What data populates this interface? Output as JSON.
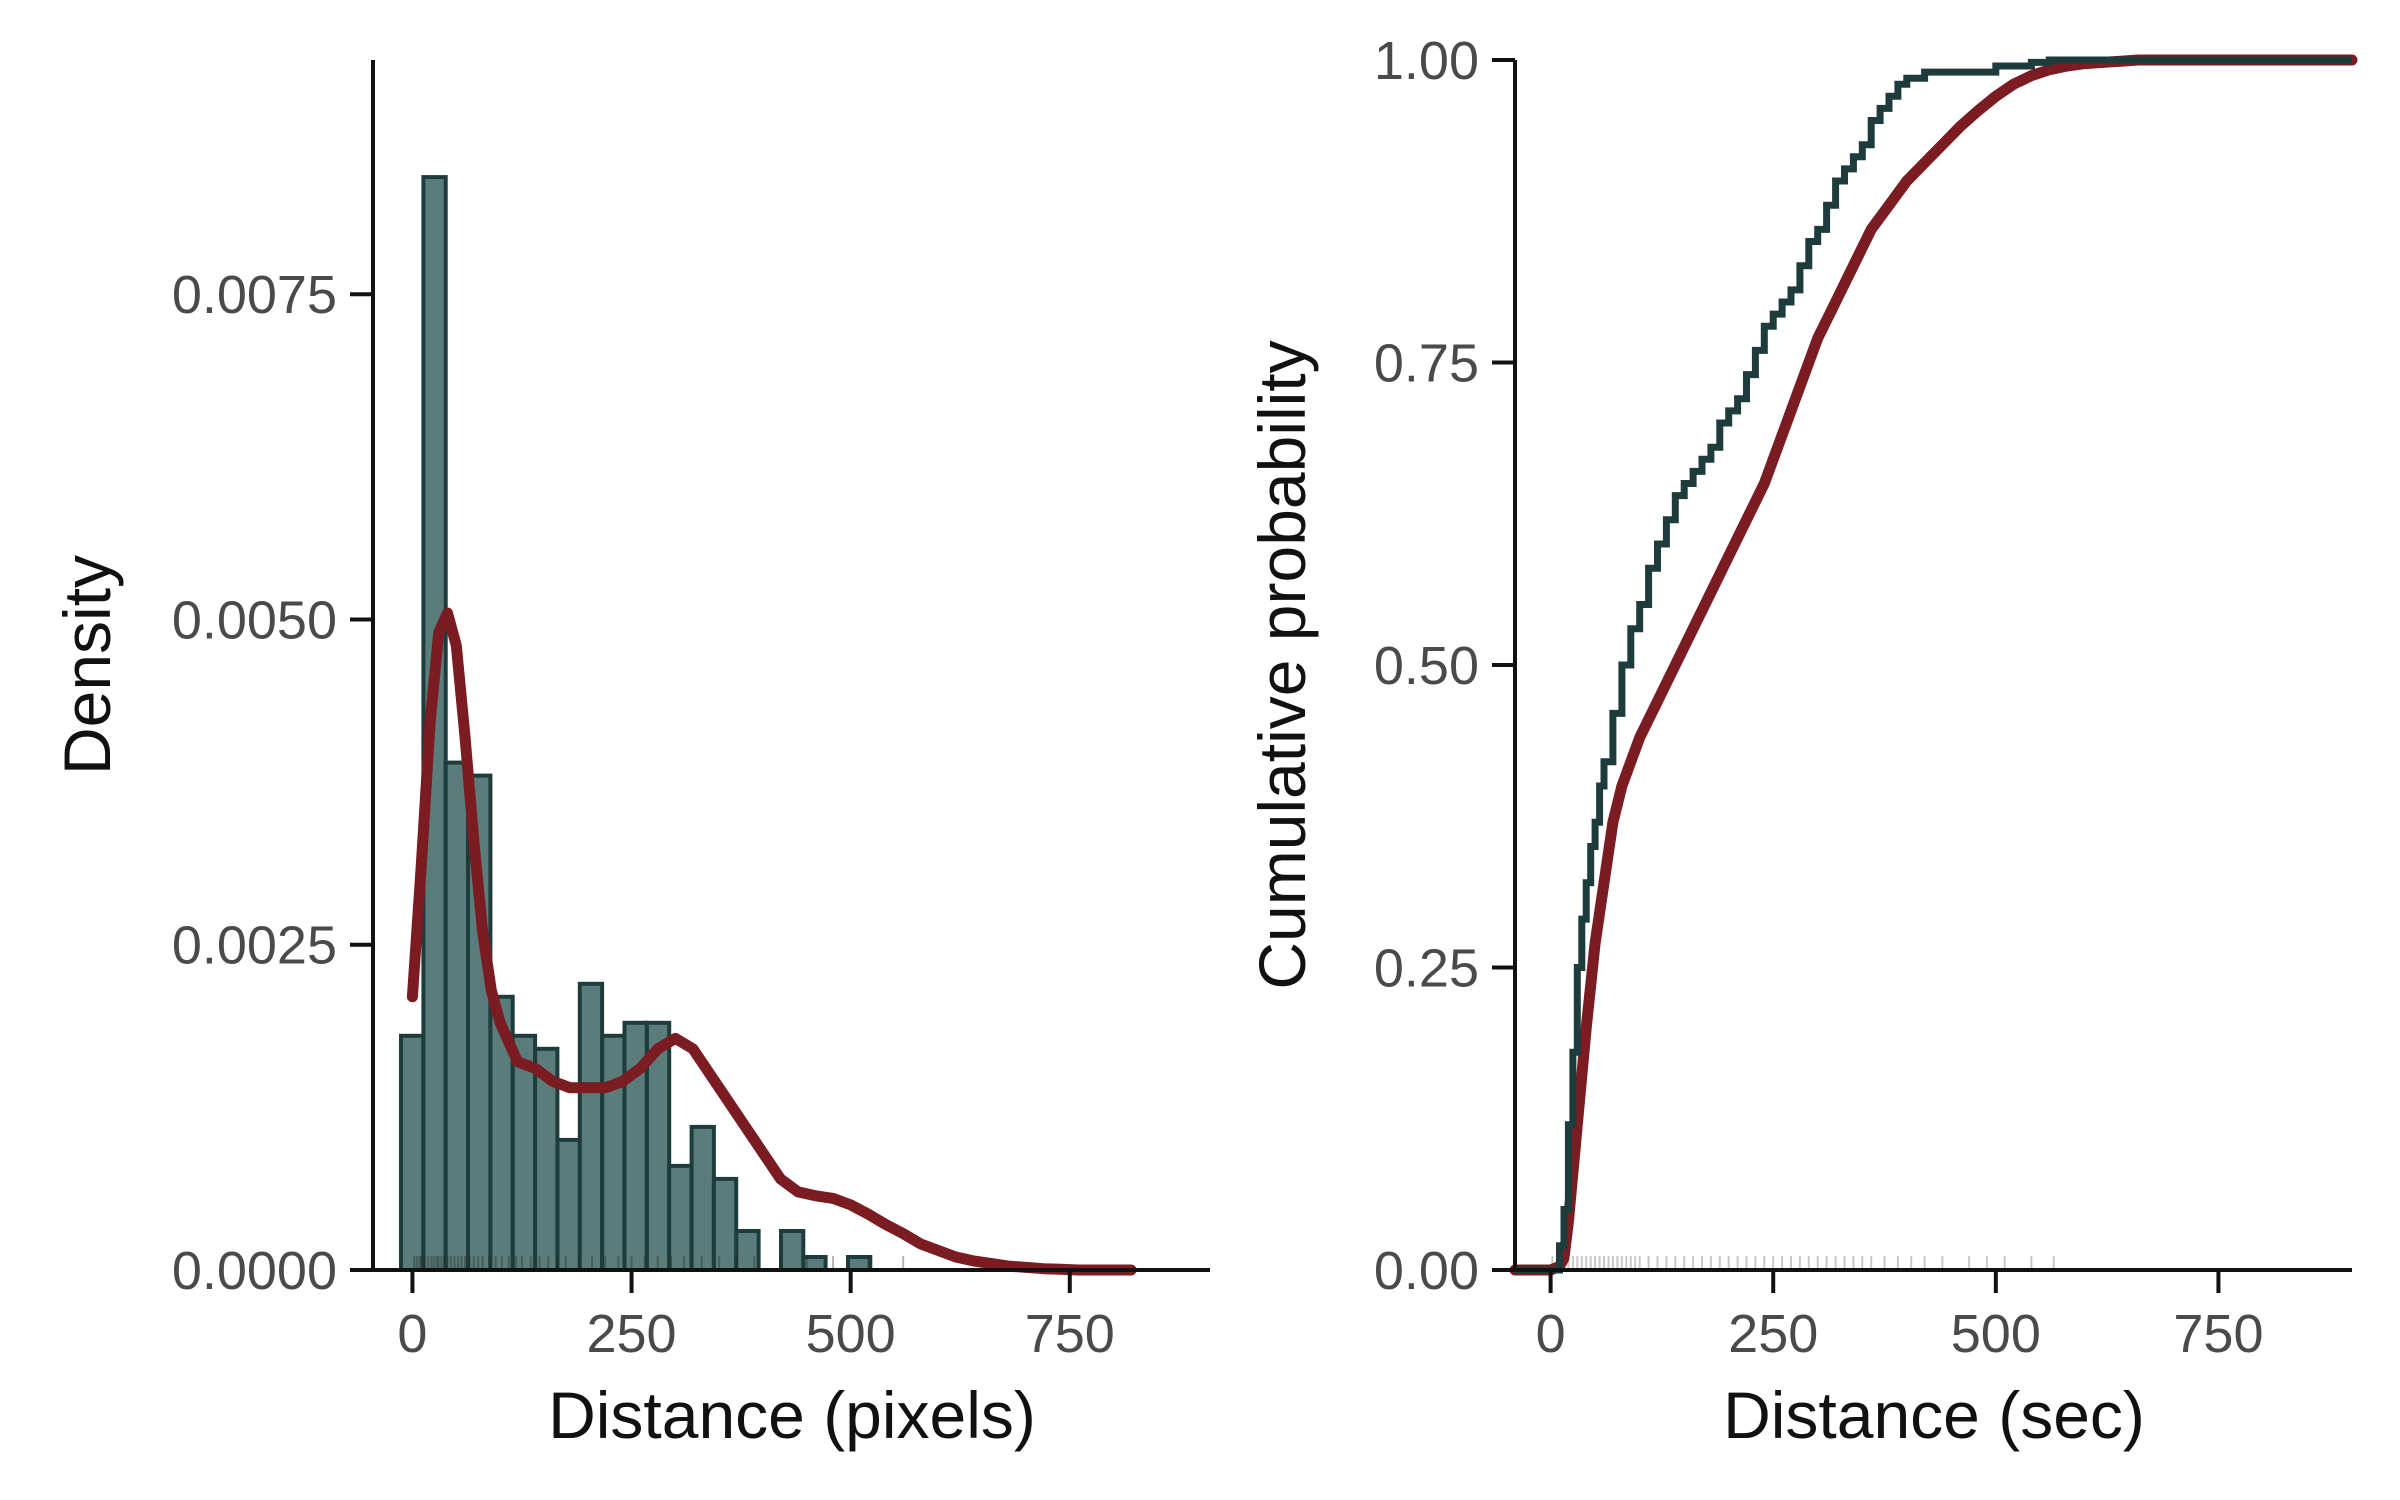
{
  "chart_data": [
    {
      "type": "bar",
      "subtype": "histogram-with-kde-and-rug",
      "xlabel": "Distance (pixels)",
      "ylabel": "Density",
      "xlim": [
        -45,
        910
      ],
      "ylim": [
        0,
        0.0093
      ],
      "xticks": [
        0,
        250,
        500,
        750
      ],
      "xtick_labels": [
        "0",
        "250",
        "500",
        "750"
      ],
      "yticks": [
        0,
        0.0025,
        0.005,
        0.0075
      ],
      "ytick_labels": [
        "0.0000",
        "0.0025",
        "0.0050",
        "0.0075"
      ],
      "grid": false,
      "colors": {
        "bars": "#5a7d7b",
        "bar_edge": "#1e3c3c",
        "kde": "#7b1b22",
        "axis": "#111111",
        "rug": "#222222"
      },
      "bin_width": 25.5,
      "bin_starts": [
        -13,
        12.5,
        38,
        63.5,
        89,
        114.5,
        140,
        165.5,
        191,
        216.5,
        242,
        267.5,
        293,
        318.5,
        344,
        369.5,
        395,
        420.5,
        446,
        471.5,
        497,
        522.5,
        548
      ],
      "values": [
        0.0018,
        0.0084,
        0.0039,
        0.0038,
        0.0021,
        0.0018,
        0.0017,
        0.001,
        0.0022,
        0.0018,
        0.0019,
        0.0019,
        0.0008,
        0.0011,
        0.0007,
        0.0003,
        0.0,
        0.0003,
        0.0001,
        0.0,
        0.0001,
        0.0,
        0.0
      ],
      "kde": {
        "x": [
          0,
          10,
          20,
          30,
          40,
          50,
          60,
          70,
          80,
          90,
          100,
          120,
          140,
          160,
          180,
          200,
          220,
          240,
          260,
          280,
          300,
          320,
          340,
          360,
          380,
          400,
          420,
          440,
          460,
          480,
          500,
          520,
          540,
          560,
          580,
          600,
          620,
          640,
          660,
          680,
          700,
          720,
          740,
          760,
          780,
          800,
          820
        ],
        "y": [
          0.0021,
          0.0031,
          0.0042,
          0.0049,
          0.00505,
          0.0048,
          0.0041,
          0.0033,
          0.0026,
          0.00215,
          0.0019,
          0.0016,
          0.00155,
          0.00145,
          0.0014,
          0.0014,
          0.0014,
          0.00145,
          0.00155,
          0.0017,
          0.00178,
          0.0017,
          0.0015,
          0.0013,
          0.0011,
          0.0009,
          0.0007,
          0.0006,
          0.00057,
          0.00055,
          0.0005,
          0.00043,
          0.00035,
          0.00028,
          0.0002,
          0.00015,
          0.0001,
          7e-05,
          5e-05,
          3e-05,
          2e-05,
          1e-05,
          5e-06,
          0,
          0,
          0,
          0
        ]
      },
      "rug": [
        2,
        5,
        8,
        10,
        14,
        18,
        22,
        25,
        28,
        30,
        33,
        36,
        40,
        44,
        48,
        52,
        56,
        60,
        65,
        70,
        75,
        80,
        88,
        95,
        102,
        110,
        118,
        125,
        135,
        145,
        155,
        165,
        175,
        190,
        205,
        220,
        235,
        250,
        265,
        280,
        295,
        310,
        330,
        350,
        370,
        390,
        420,
        450,
        480,
        520,
        560
      ]
    },
    {
      "type": "line",
      "subtype": "empirical-cdf",
      "xlabel": "Distance (sec)",
      "ylabel": "Cumulative probability",
      "xlim": [
        -40,
        900
      ],
      "ylim": [
        0,
        1.0
      ],
      "xticks": [
        0,
        250,
        500,
        750
      ],
      "xtick_labels": [
        "0",
        "250",
        "500",
        "750"
      ],
      "yticks": [
        0,
        0.25,
        0.5,
        0.75,
        1.0
      ],
      "ytick_labels": [
        "0.00",
        "0.25",
        "0.50",
        "0.75",
        "1.00"
      ],
      "grid": false,
      "colors": {
        "empirical": "#1e3c3c",
        "smooth": "#7b1b22",
        "axis": "#111111",
        "rug": "#222222"
      },
      "series": [
        {
          "x": [
            -40,
            0,
            10,
            15,
            20,
            25,
            30,
            35,
            40,
            45,
            50,
            55,
            60,
            70,
            80,
            90,
            100,
            110,
            120,
            130,
            140,
            150,
            160,
            170,
            180,
            190,
            200,
            210,
            220,
            230,
            240,
            250,
            260,
            270,
            280,
            290,
            300,
            310,
            320,
            330,
            340,
            350,
            360,
            370,
            380,
            390,
            400,
            420,
            440,
            460,
            480,
            500,
            520,
            540,
            560,
            570,
            900
          ],
          "y": [
            0,
            0,
            0.02,
            0.05,
            0.12,
            0.18,
            0.25,
            0.29,
            0.32,
            0.35,
            0.37,
            0.4,
            0.42,
            0.46,
            0.5,
            0.53,
            0.55,
            0.58,
            0.6,
            0.62,
            0.64,
            0.65,
            0.66,
            0.67,
            0.68,
            0.7,
            0.71,
            0.72,
            0.74,
            0.76,
            0.78,
            0.79,
            0.8,
            0.81,
            0.83,
            0.85,
            0.86,
            0.88,
            0.9,
            0.91,
            0.92,
            0.93,
            0.95,
            0.96,
            0.97,
            0.98,
            0.985,
            0.99,
            0.99,
            0.99,
            0.99,
            0.995,
            0.995,
            0.998,
            1.0,
            1.0,
            1.0
          ]
        },
        {
          "x": [
            -40,
            0,
            10,
            15,
            20,
            30,
            40,
            50,
            60,
            70,
            80,
            90,
            100,
            120,
            140,
            160,
            180,
            200,
            220,
            240,
            260,
            280,
            300,
            320,
            340,
            360,
            380,
            400,
            420,
            440,
            460,
            480,
            500,
            520,
            540,
            560,
            580,
            600,
            620,
            640,
            660,
            680,
            700,
            750,
            800,
            850,
            900
          ],
          "y": [
            0,
            0,
            0.003,
            0.01,
            0.04,
            0.12,
            0.2,
            0.27,
            0.32,
            0.37,
            0.4,
            0.42,
            0.44,
            0.47,
            0.5,
            0.53,
            0.56,
            0.59,
            0.62,
            0.65,
            0.69,
            0.73,
            0.77,
            0.8,
            0.83,
            0.86,
            0.88,
            0.9,
            0.915,
            0.93,
            0.945,
            0.958,
            0.97,
            0.98,
            0.987,
            0.992,
            0.995,
            0.997,
            0.998,
            0.999,
            1.0,
            1.0,
            1.0,
            1.0,
            1.0,
            1.0,
            1.0
          ]
        }
      ],
      "rug": [
        2,
        8,
        15,
        20,
        25,
        30,
        35,
        40,
        45,
        50,
        55,
        60,
        65,
        70,
        75,
        80,
        85,
        90,
        95,
        100,
        110,
        120,
        130,
        140,
        150,
        160,
        170,
        180,
        190,
        200,
        210,
        220,
        230,
        240,
        250,
        260,
        270,
        280,
        290,
        300,
        310,
        320,
        330,
        340,
        350,
        360,
        375,
        390,
        405,
        420,
        440,
        470,
        490,
        510,
        540,
        565
      ]
    }
  ]
}
